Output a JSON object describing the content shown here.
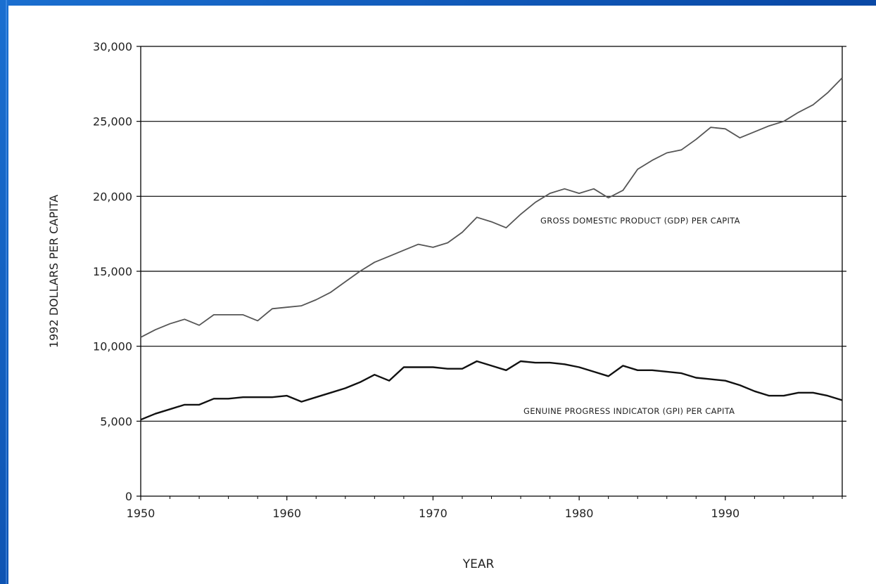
{
  "chart_data": {
    "type": "line",
    "title": "",
    "xlabel": "YEAR",
    "ylabel": "1992 DOLLARS PER CAPITA",
    "xlim": [
      1950,
      1998
    ],
    "ylim": [
      0,
      30000
    ],
    "x_ticks": [
      "1950",
      "1960",
      "1970",
      "1980",
      "1990"
    ],
    "y_ticks": [
      "0",
      "5,000",
      "10,000",
      "15,000",
      "20,000",
      "25,000",
      "30,000"
    ],
    "grid": "horizontal",
    "series": [
      {
        "name": "GROSS DOMESTIC PRODUCT (GDP) PER CAPITA",
        "color": "#555555",
        "x": [
          1950,
          1951,
          1952,
          1953,
          1954,
          1955,
          1956,
          1957,
          1958,
          1959,
          1960,
          1961,
          1962,
          1963,
          1964,
          1965,
          1966,
          1967,
          1968,
          1969,
          1970,
          1971,
          1972,
          1973,
          1974,
          1975,
          1976,
          1977,
          1978,
          1979,
          1980,
          1981,
          1982,
          1983,
          1984,
          1985,
          1986,
          1987,
          1988,
          1989,
          1990,
          1991,
          1992,
          1993,
          1994,
          1995,
          1996,
          1997,
          1998
        ],
        "y": [
          10600,
          11100,
          11500,
          11800,
          11400,
          12100,
          12100,
          12100,
          11700,
          12500,
          12600,
          12700,
          13100,
          13600,
          14300,
          15000,
          15600,
          16000,
          16400,
          16800,
          16600,
          16900,
          17600,
          18600,
          18300,
          17900,
          18800,
          19600,
          20200,
          20500,
          20200,
          20500,
          19900,
          20400,
          21800,
          22400,
          22900,
          23100,
          23800,
          24600,
          24500,
          23900,
          24300,
          24700,
          25000,
          25600,
          26100,
          26900,
          27900
        ],
        "label": "GROSS DOMESTIC PRODUCT (GDP) PER CAPITA"
      },
      {
        "name": "GENUINE PROGRESS INDICATOR (GPI) PER CAPITA",
        "color": "#111111",
        "x": [
          1950,
          1951,
          1952,
          1953,
          1954,
          1955,
          1956,
          1957,
          1958,
          1959,
          1960,
          1961,
          1962,
          1963,
          1964,
          1965,
          1966,
          1967,
          1968,
          1969,
          1970,
          1971,
          1972,
          1973,
          1974,
          1975,
          1976,
          1977,
          1978,
          1979,
          1980,
          1981,
          1982,
          1983,
          1984,
          1985,
          1986,
          1987,
          1988,
          1989,
          1990,
          1991,
          1992,
          1993,
          1994,
          1995,
          1996,
          1997,
          1998
        ],
        "y": [
          5100,
          5500,
          5800,
          6100,
          6100,
          6500,
          6500,
          6600,
          6600,
          6600,
          6700,
          6300,
          6600,
          6900,
          7200,
          7600,
          8100,
          7700,
          8600,
          8600,
          8600,
          8500,
          8500,
          9000,
          8700,
          8400,
          9000,
          8900,
          8900,
          8800,
          8600,
          8300,
          8000,
          8700,
          8400,
          8400,
          8300,
          8200,
          7900,
          7800,
          7700,
          7400,
          7000,
          6700,
          6700,
          6900,
          6900,
          6700,
          6400
        ],
        "label": "GENUINE PROGRESS INDICATOR (GPI) PER CAPITA"
      }
    ]
  }
}
